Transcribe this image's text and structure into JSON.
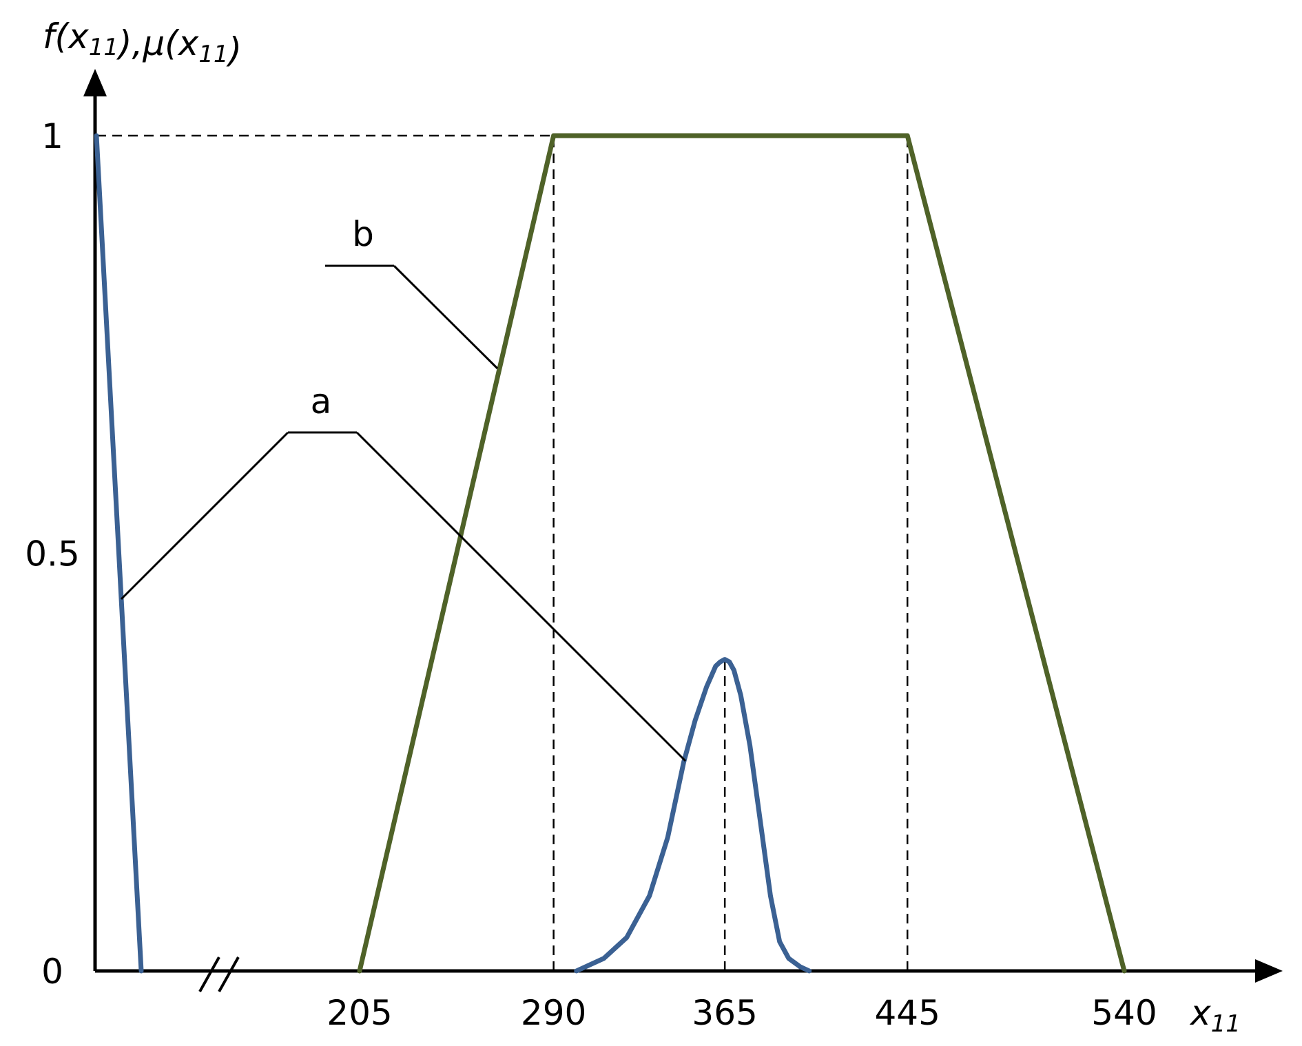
{
  "chart_data": {
    "type": "line",
    "title": "",
    "y_axis": {
      "label_parts": [
        {
          "text": "f(x",
          "sub": false
        },
        {
          "text": "11",
          "sub": true
        },
        {
          "text": "),μ(x",
          "sub": false
        },
        {
          "text": "11",
          "sub": true
        },
        {
          "text": ")",
          "sub": false
        }
      ],
      "ylim": [
        0,
        1
      ],
      "ticks": [
        {
          "value": 0,
          "label": "0"
        },
        {
          "value": 0.5,
          "label": "0.5"
        },
        {
          "value": 1,
          "label": "1"
        }
      ]
    },
    "x_axis": {
      "label_parts": [
        {
          "text": "x",
          "sub": false
        },
        {
          "text": "11",
          "sub": true
        }
      ],
      "broken_axis": true,
      "ticks": [
        {
          "value": 205,
          "label": "205"
        },
        {
          "value": 290,
          "label": "290"
        },
        {
          "value": 365,
          "label": "365"
        },
        {
          "value": 445,
          "label": "445"
        },
        {
          "value": 540,
          "label": "540"
        }
      ]
    },
    "series": [
      {
        "name": "a",
        "color": "#3b6193",
        "segments": [
          {
            "x": [
              100,
              122
            ],
            "y": [
              1,
              0
            ]
          },
          {
            "x": [
              300,
              312,
              322,
              332,
              340,
              347,
              352,
              357,
              361,
              363,
              365,
              367,
              369,
              372,
              376,
              381,
              385,
              389,
              393,
              398,
              402
            ],
            "y": [
              0,
              0.015,
              0.04,
              0.09,
              0.16,
              0.25,
              0.3,
              0.34,
              0.365,
              0.37,
              0.373,
              0.37,
              0.36,
              0.33,
              0.27,
              0.17,
              0.09,
              0.035,
              0.015,
              0.005,
              0
            ]
          }
        ]
      },
      {
        "name": "b",
        "color": "#4f6228",
        "segments": [
          {
            "x": [
              205,
              290,
              445,
              540
            ],
            "y": [
              0,
              1,
              1,
              0
            ]
          }
        ]
      }
    ],
    "reference_lines": [
      {
        "orientation": "horizontal",
        "y": 1,
        "x_from": 100,
        "x_to": 365
      },
      {
        "orientation": "vertical",
        "x": 290,
        "y_from": 0,
        "y_to": 1
      },
      {
        "orientation": "vertical",
        "x": 365,
        "y_from": 0,
        "y_to": 0.373
      },
      {
        "orientation": "vertical",
        "x": 445,
        "y_from": 0,
        "y_to": 1
      }
    ],
    "annotations": [
      {
        "text": "a",
        "target_series": "a"
      },
      {
        "text": "b",
        "target_series": "b"
      }
    ],
    "grid": false,
    "legend": "none"
  }
}
